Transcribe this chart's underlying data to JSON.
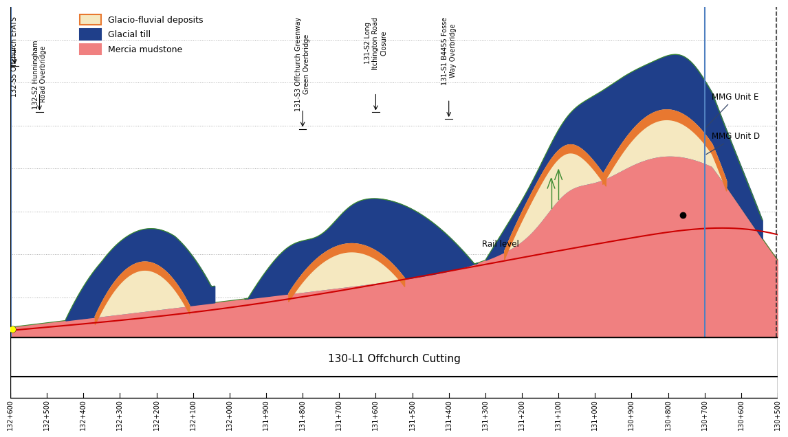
{
  "title": "130-L1 Offchurch Cutting",
  "x_labels": [
    "132+600",
    "132+500",
    "132+400",
    "132+300",
    "132+200",
    "132+100",
    "132+000",
    "131+900",
    "131+800",
    "131+700",
    "131+600",
    "131+500",
    "131+400",
    "131+300",
    "131+200",
    "131+100",
    "131+000",
    "130+900",
    "130+800",
    "130+700",
    "130+600",
    "130+500"
  ],
  "colors": {
    "mercia": "#F08080",
    "glacial_till": "#1F3F8A",
    "glacio_fluvial": "#F5E8C0",
    "green_outline": "#3A8A30",
    "orange_top": "#E87830",
    "rail_line": "#CC0000",
    "background": "#FFFFFF",
    "blue_line": "#5080C0",
    "dashed_line": "#333333",
    "yellow_dot": "#FFFF00"
  },
  "legend": [
    {
      "label": "Glacio-fluvial deposits",
      "fc": "#F5E8C0",
      "ec": "#E87830"
    },
    {
      "label": "Glacial till",
      "fc": "#1F3F8A",
      "ec": "#1F3F8A"
    },
    {
      "label": "Mercia mudstone",
      "fc": "#F08080",
      "ec": "#F08080"
    }
  ]
}
